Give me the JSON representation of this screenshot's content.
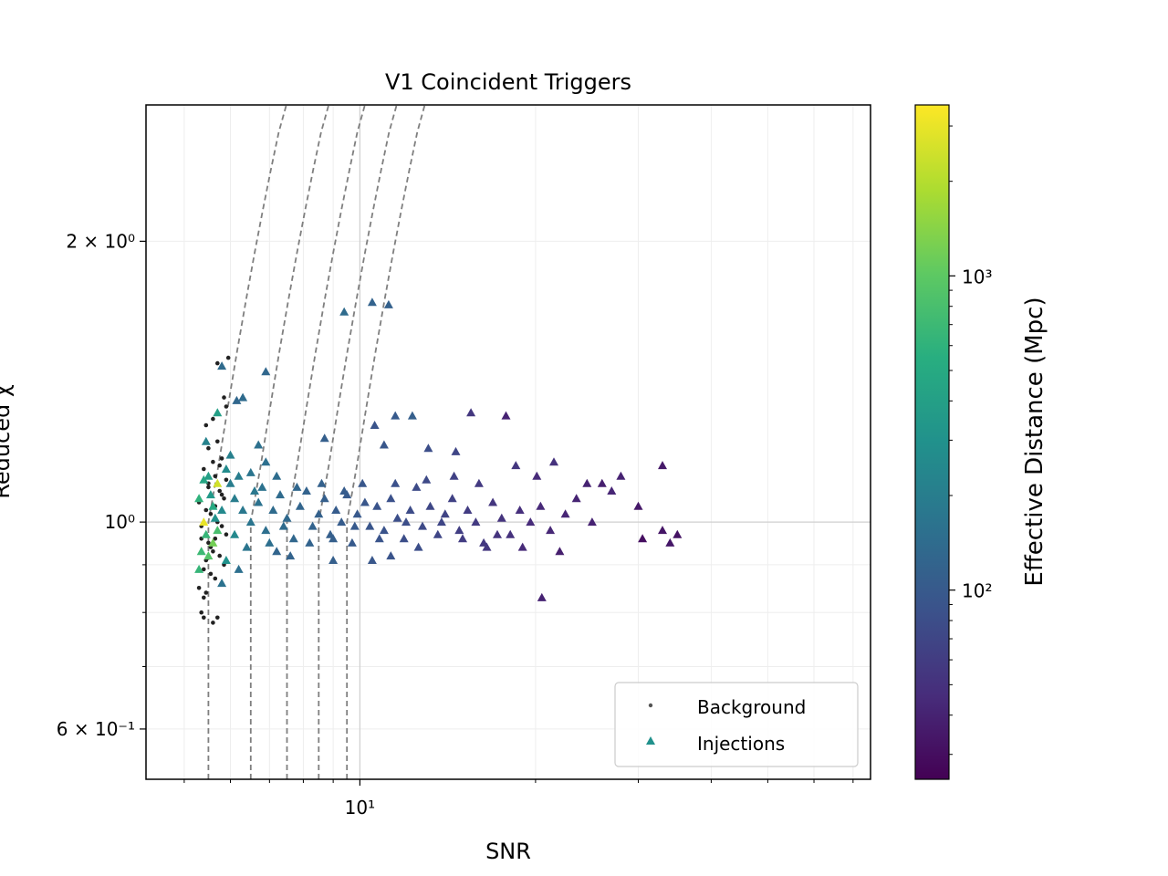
{
  "chart_data": {
    "type": "scatter",
    "title": "V1 Coincident Triggers",
    "xlabel": "SNR",
    "ylabel": "Reduced χ",
    "xscale": "log",
    "yscale": "log",
    "xlim": [
      4.3,
      75
    ],
    "ylim": [
      0.53,
      2.8
    ],
    "grid": true,
    "legend_position": "lower-right",
    "x_tick_labels": [
      {
        "value": 10,
        "label": "10¹"
      }
    ],
    "y_tick_labels": [
      {
        "value": 2.0,
        "label": "2 × 10⁰"
      },
      {
        "value": 1.0,
        "label": "10⁰"
      },
      {
        "value": 0.6,
        "label": "6 × 10⁻¹"
      }
    ],
    "colorbar": {
      "label": "Effective Distance (Mpc)",
      "scale": "log",
      "colormap": "viridis",
      "range": [
        25,
        3500
      ],
      "tick_labels": [
        {
          "value": 1000,
          "label": "10³"
        },
        {
          "value": 100,
          "label": "10²"
        }
      ]
    },
    "legend": [
      {
        "label": "Background",
        "marker": "dot",
        "color": "#555555"
      },
      {
        "label": "Injections",
        "marker": "triangle",
        "color": "#21918c"
      }
    ],
    "threshold_curves": [
      {
        "snr_start": 5.5
      },
      {
        "snr_start": 6.5
      },
      {
        "snr_start": 7.5
      },
      {
        "snr_start": 8.5
      },
      {
        "snr_start": 9.5
      }
    ],
    "series": [
      {
        "name": "Background",
        "color": "#222222",
        "points": [
          [
            5.7,
            1.48
          ],
          [
            5.95,
            1.5
          ],
          [
            5.85,
            1.36
          ],
          [
            5.9,
            1.33
          ],
          [
            5.6,
            1.29
          ],
          [
            5.45,
            1.27
          ],
          [
            5.5,
            1.2
          ],
          [
            5.7,
            1.22
          ],
          [
            5.8,
            1.17
          ],
          [
            5.6,
            1.16
          ],
          [
            5.4,
            1.14
          ],
          [
            5.5,
            1.1
          ],
          [
            5.65,
            1.12
          ],
          [
            5.75,
            1.08
          ],
          [
            5.85,
            1.06
          ],
          [
            5.3,
            1.05
          ],
          [
            5.45,
            1.03
          ],
          [
            5.55,
            1.02
          ],
          [
            5.7,
            1.0
          ],
          [
            5.8,
            0.99
          ],
          [
            5.9,
            0.97
          ],
          [
            5.35,
            0.96
          ],
          [
            5.5,
            0.95
          ],
          [
            5.6,
            0.93
          ],
          [
            5.75,
            0.92
          ],
          [
            5.85,
            0.9
          ],
          [
            5.4,
            0.89
          ],
          [
            5.55,
            0.88
          ],
          [
            5.65,
            0.87
          ],
          [
            5.8,
            0.86
          ],
          [
            5.3,
            0.85
          ],
          [
            5.45,
            0.84
          ],
          [
            5.35,
            0.8
          ],
          [
            5.4,
            0.79
          ],
          [
            5.7,
            0.79
          ],
          [
            5.6,
            0.78
          ],
          [
            5.4,
            0.83
          ],
          [
            5.55,
            0.94
          ],
          [
            5.65,
            1.04
          ],
          [
            5.5,
            1.09
          ],
          [
            5.75,
            1.15
          ],
          [
            5.9,
            1.11
          ],
          [
            5.35,
            0.99
          ],
          [
            5.45,
            0.91
          ],
          [
            5.8,
            1.07
          ],
          [
            5.65,
            0.96
          ]
        ]
      },
      {
        "name": "Injections",
        "points": [
          [
            9.4,
            1.68,
            140
          ],
          [
            10.5,
            1.72,
            120
          ],
          [
            11.2,
            1.71,
            115
          ],
          [
            5.8,
            1.47,
            140
          ],
          [
            6.9,
            1.45,
            130
          ],
          [
            6.3,
            1.36,
            140
          ],
          [
            6.15,
            1.35,
            130
          ],
          [
            5.45,
            1.22,
            220
          ],
          [
            5.7,
            1.31,
            400
          ],
          [
            12.3,
            1.3,
            110
          ],
          [
            10.6,
            1.27,
            90
          ],
          [
            11.5,
            1.3,
            100
          ],
          [
            15.5,
            1.31,
            55
          ],
          [
            17.8,
            1.3,
            40
          ],
          [
            8.7,
            1.23,
            110
          ],
          [
            11.0,
            1.21,
            95
          ],
          [
            13.1,
            1.2,
            80
          ],
          [
            14.6,
            1.19,
            70
          ],
          [
            28.0,
            1.12,
            40
          ],
          [
            33.0,
            1.15,
            35
          ],
          [
            21.5,
            1.16,
            50
          ],
          [
            18.5,
            1.15,
            55
          ],
          [
            20.1,
            1.12,
            45
          ],
          [
            24.5,
            1.1,
            40
          ],
          [
            26.0,
            1.1,
            38
          ],
          [
            27.0,
            1.08,
            42
          ],
          [
            30.0,
            1.04,
            35
          ],
          [
            35.0,
            0.97,
            32
          ],
          [
            33.0,
            0.98,
            33
          ],
          [
            30.5,
            0.96,
            30
          ],
          [
            34.0,
            0.95,
            34
          ],
          [
            22.0,
            0.93,
            38
          ],
          [
            19.0,
            0.94,
            45
          ],
          [
            20.5,
            0.83,
            40
          ],
          [
            16.5,
            0.94,
            55
          ],
          [
            15.0,
            0.96,
            60
          ],
          [
            12.6,
            0.94,
            80
          ],
          [
            11.3,
            0.92,
            90
          ],
          [
            10.5,
            0.91,
            95
          ],
          [
            9.0,
            0.91,
            110
          ],
          [
            7.6,
            0.92,
            120
          ],
          [
            7.2,
            0.93,
            125
          ],
          [
            6.2,
            0.89,
            150
          ],
          [
            5.8,
            0.86,
            160
          ],
          [
            5.5,
            0.92,
            900
          ],
          [
            5.6,
            0.95,
            1200
          ],
          [
            5.7,
            1.1,
            2500
          ],
          [
            5.4,
            1.0,
            3000
          ],
          [
            5.3,
            1.06,
            600
          ],
          [
            5.35,
            0.93,
            700
          ],
          [
            5.5,
            1.12,
            400
          ],
          [
            5.6,
            1.04,
            500
          ],
          [
            5.45,
            0.97,
            650
          ],
          [
            5.55,
            1.07,
            350
          ],
          [
            5.7,
            0.98,
            800
          ],
          [
            5.4,
            1.11,
            450
          ],
          [
            5.65,
            1.01,
            300
          ],
          [
            5.8,
            1.03,
            250
          ],
          [
            6.0,
            1.1,
            200
          ],
          [
            6.1,
            1.06,
            200
          ],
          [
            6.3,
            1.03,
            180
          ],
          [
            6.5,
            1.0,
            170
          ],
          [
            6.7,
            1.05,
            160
          ],
          [
            6.9,
            0.98,
            150
          ],
          [
            7.1,
            1.03,
            140
          ],
          [
            7.3,
            1.07,
            140
          ],
          [
            7.5,
            1.01,
            135
          ],
          [
            7.7,
            0.96,
            130
          ],
          [
            7.9,
            1.04,
            125
          ],
          [
            8.1,
            1.08,
            120
          ],
          [
            8.3,
            0.99,
            120
          ],
          [
            8.5,
            1.02,
            115
          ],
          [
            8.7,
            1.06,
            110
          ],
          [
            8.9,
            0.97,
            110
          ],
          [
            9.1,
            1.03,
            105
          ],
          [
            9.3,
            1.0,
            105
          ],
          [
            9.5,
            1.07,
            100
          ],
          [
            9.7,
            0.95,
            100
          ],
          [
            9.9,
            1.02,
            98
          ],
          [
            10.2,
            1.05,
            95
          ],
          [
            10.4,
            0.99,
            92
          ],
          [
            10.7,
            1.04,
            90
          ],
          [
            11.0,
            0.98,
            88
          ],
          [
            11.3,
            1.06,
            85
          ],
          [
            11.6,
            1.01,
            82
          ],
          [
            11.9,
            0.96,
            80
          ],
          [
            12.2,
            1.03,
            78
          ],
          [
            12.5,
            1.09,
            76
          ],
          [
            12.8,
            0.99,
            75
          ],
          [
            13.2,
            1.04,
            72
          ],
          [
            13.6,
            0.97,
            70
          ],
          [
            14.0,
            1.02,
            68
          ],
          [
            14.4,
            1.06,
            65
          ],
          [
            14.8,
            0.98,
            62
          ],
          [
            15.3,
            1.03,
            60
          ],
          [
            15.8,
            1.0,
            58
          ],
          [
            16.3,
            0.95,
            56
          ],
          [
            16.9,
            1.05,
            54
          ],
          [
            17.5,
            1.01,
            52
          ],
          [
            18.1,
            0.97,
            50
          ],
          [
            18.8,
            1.03,
            48
          ],
          [
            19.6,
            1.0,
            46
          ],
          [
            20.4,
            1.04,
            44
          ],
          [
            21.2,
            0.98,
            43
          ],
          [
            22.5,
            1.02,
            42
          ],
          [
            23.5,
            1.06,
            41
          ],
          [
            25.0,
            1.0,
            40
          ],
          [
            6.4,
            0.94,
            170
          ],
          [
            6.8,
            1.09,
            160
          ],
          [
            7.0,
            0.95,
            150
          ],
          [
            7.4,
            0.99,
            140
          ],
          [
            7.8,
            1.09,
            130
          ],
          [
            8.2,
            0.95,
            120
          ],
          [
            8.6,
            1.1,
            115
          ],
          [
            9.0,
            0.96,
            110
          ],
          [
            9.4,
            1.08,
            105
          ],
          [
            9.8,
            0.99,
            100
          ],
          [
            10.1,
            1.1,
            95
          ],
          [
            10.8,
            0.96,
            90
          ],
          [
            11.5,
            1.1,
            85
          ],
          [
            12.0,
            1.0,
            80
          ],
          [
            13.0,
            1.11,
            75
          ],
          [
            13.8,
            1.0,
            70
          ],
          [
            14.5,
            1.12,
            65
          ],
          [
            16.0,
            1.1,
            58
          ],
          [
            17.2,
            0.97,
            52
          ],
          [
            5.3,
            0.89,
            650
          ],
          [
            5.9,
            0.91,
            300
          ],
          [
            6.1,
            0.97,
            250
          ],
          [
            6.6,
            1.08,
            180
          ],
          [
            6.5,
            1.13,
            170
          ],
          [
            7.2,
            1.12,
            145
          ],
          [
            6.9,
            1.16,
            150
          ],
          [
            6.7,
            1.21,
            155
          ],
          [
            6.0,
            1.18,
            210
          ],
          [
            6.2,
            1.12,
            200
          ],
          [
            5.9,
            1.14,
            260
          ]
        ]
      }
    ]
  }
}
